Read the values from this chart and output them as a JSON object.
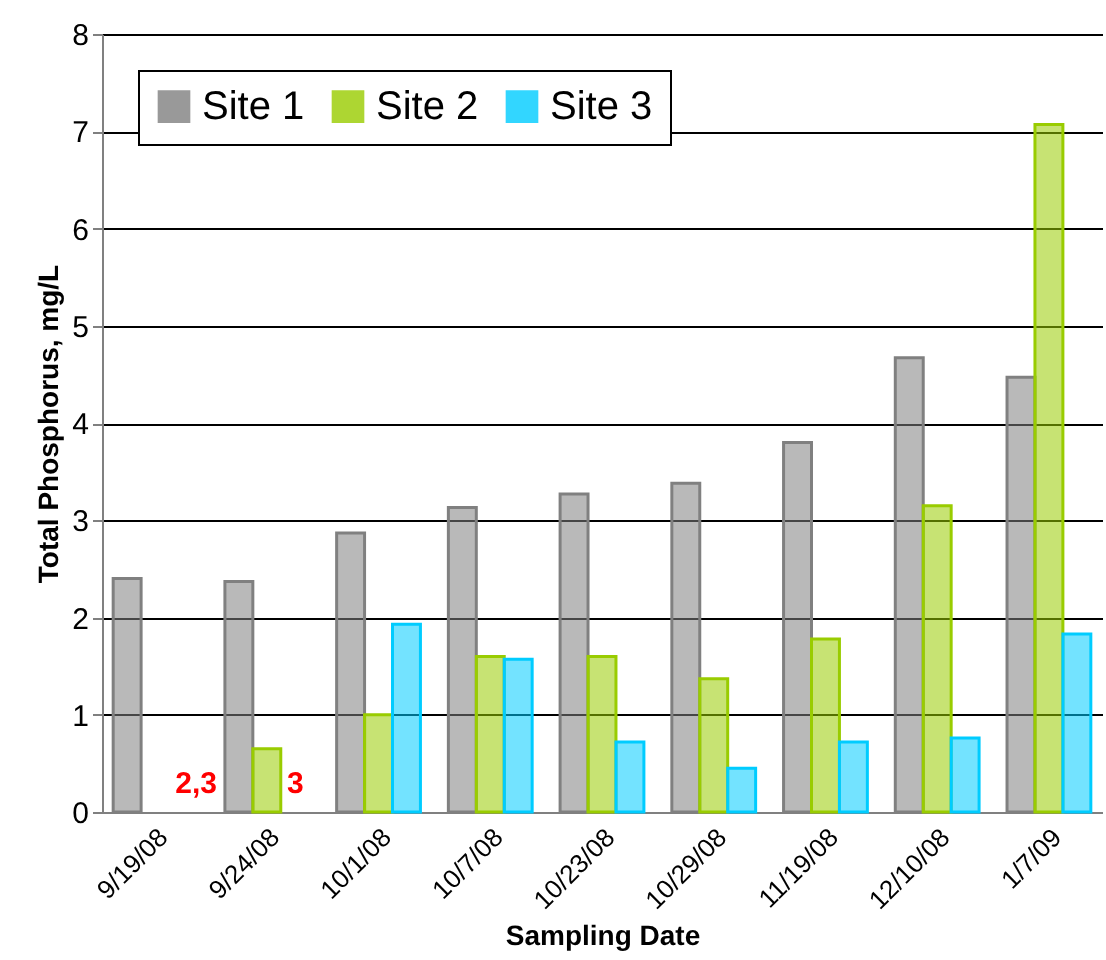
{
  "chart_data": {
    "type": "bar",
    "xlabel": "Sampling Date",
    "ylabel": "Total Phosphorus, mg/L",
    "categories": [
      "9/19/08",
      "9/24/08",
      "10/1/08",
      "10/7/08",
      "10/23/08",
      "10/29/08",
      "11/19/08",
      "12/10/08",
      "1/7/09"
    ],
    "series": [
      {
        "name": "Site 1",
        "color": "#808080",
        "values": [
          2.4,
          2.37,
          2.87,
          3.13,
          3.27,
          3.38,
          3.8,
          4.67,
          4.47
        ]
      },
      {
        "name": "Site 2",
        "color": "#99cc00",
        "values": [
          null,
          0.65,
          1.0,
          1.6,
          1.6,
          1.37,
          1.78,
          3.15,
          7.07
        ]
      },
      {
        "name": "Site 3",
        "color": "#00ccff",
        "values": [
          null,
          null,
          1.93,
          1.57,
          0.72,
          0.45,
          0.72,
          0.76,
          1.83
        ]
      }
    ],
    "ylim": [
      0,
      8
    ],
    "yticks": [
      0,
      1,
      2,
      3,
      4,
      5,
      6,
      7,
      8
    ],
    "grid": "y",
    "legend": "top left",
    "annotations": [
      {
        "text": "2,3",
        "x": "9/19/08",
        "y": 0.3
      },
      {
        "text": "3",
        "x": "9/24/08",
        "y": 0.3
      }
    ]
  }
}
